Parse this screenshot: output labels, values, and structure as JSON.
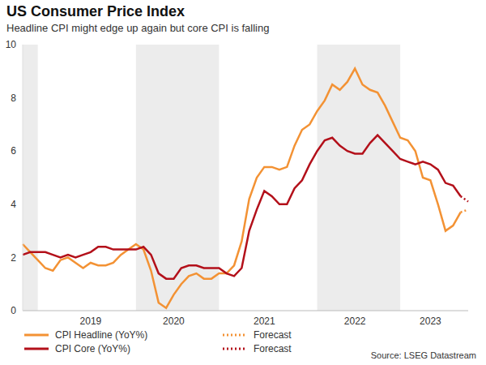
{
  "chart_data": {
    "type": "line",
    "title": "US Consumer Price Index",
    "subtitle": "Headline CPI might edge up again but core CPI is falling",
    "source": "Source: LSEG Datastream",
    "categories": [
      null,
      null,
      null,
      null,
      null,
      null,
      null,
      null,
      null,
      "2019",
      null,
      null,
      null,
      null,
      null,
      null,
      null,
      null,
      null,
      null,
      "2020",
      null,
      null,
      null,
      null,
      null,
      null,
      null,
      null,
      null,
      null,
      null,
      "2021",
      null,
      null,
      null,
      null,
      null,
      null,
      null,
      null,
      null,
      null,
      null,
      "2022",
      null,
      null,
      null,
      null,
      null,
      null,
      null,
      null,
      null,
      "2023",
      null,
      null,
      null,
      null,
      null
    ],
    "ylim": [
      0,
      10
    ],
    "yticks": [
      0,
      2,
      4,
      6,
      8,
      10
    ],
    "grid": false,
    "series": [
      {
        "name": "CPI Headline (YoY%)",
        "color": "#f39234",
        "line_style": "solid",
        "values": [
          2.5,
          2.2,
          1.9,
          1.6,
          1.5,
          1.9,
          2.0,
          1.8,
          1.6,
          1.8,
          1.7,
          1.7,
          1.8,
          2.1,
          2.3,
          2.5,
          2.3,
          1.5,
          0.3,
          0.1,
          0.6,
          1.0,
          1.3,
          1.4,
          1.2,
          1.2,
          1.4,
          1.4,
          1.7,
          2.6,
          4.2,
          5.0,
          5.4,
          5.4,
          5.3,
          5.4,
          6.2,
          6.8,
          7.0,
          7.5,
          7.9,
          8.5,
          8.3,
          8.6,
          9.1,
          8.5,
          8.3,
          8.2,
          7.7,
          7.1,
          6.5,
          6.4,
          6.0,
          5.0,
          4.9,
          4.0,
          3.0,
          3.2,
          3.7,
          null
        ]
      },
      {
        "name": "CPI Core (YoY%)",
        "color": "#b3101a",
        "line_style": "solid",
        "values": [
          2.1,
          2.2,
          2.2,
          2.2,
          2.1,
          2.0,
          2.1,
          2.0,
          2.1,
          2.2,
          2.4,
          2.4,
          2.3,
          2.3,
          2.3,
          2.3,
          2.4,
          2.1,
          1.4,
          1.2,
          1.2,
          1.6,
          1.7,
          1.7,
          1.6,
          1.6,
          1.6,
          1.4,
          1.3,
          1.6,
          3.0,
          3.8,
          4.5,
          4.3,
          4.0,
          4.0,
          4.6,
          4.9,
          5.5,
          6.0,
          6.4,
          6.5,
          6.2,
          6.0,
          5.9,
          5.9,
          6.3,
          6.6,
          6.3,
          6.0,
          5.7,
          5.6,
          5.5,
          5.6,
          5.5,
          5.3,
          4.8,
          4.7,
          4.3,
          null
        ]
      },
      {
        "name": "Forecast",
        "color": "#f39234",
        "line_style": "dotted",
        "values": [
          null,
          null,
          null,
          null,
          null,
          null,
          null,
          null,
          null,
          null,
          null,
          null,
          null,
          null,
          null,
          null,
          null,
          null,
          null,
          null,
          null,
          null,
          null,
          null,
          null,
          null,
          null,
          null,
          null,
          null,
          null,
          null,
          null,
          null,
          null,
          null,
          null,
          null,
          null,
          null,
          null,
          null,
          null,
          null,
          null,
          null,
          null,
          null,
          null,
          null,
          null,
          null,
          null,
          null,
          null,
          null,
          null,
          null,
          3.7,
          3.8
        ]
      },
      {
        "name": "Forecast",
        "color": "#b3101a",
        "line_style": "dotted",
        "values": [
          null,
          null,
          null,
          null,
          null,
          null,
          null,
          null,
          null,
          null,
          null,
          null,
          null,
          null,
          null,
          null,
          null,
          null,
          null,
          null,
          null,
          null,
          null,
          null,
          null,
          null,
          null,
          null,
          null,
          null,
          null,
          null,
          null,
          null,
          null,
          null,
          null,
          null,
          null,
          null,
          null,
          null,
          null,
          null,
          null,
          null,
          null,
          null,
          null,
          null,
          null,
          null,
          null,
          null,
          null,
          null,
          null,
          null,
          4.3,
          4.1
        ]
      }
    ]
  }
}
